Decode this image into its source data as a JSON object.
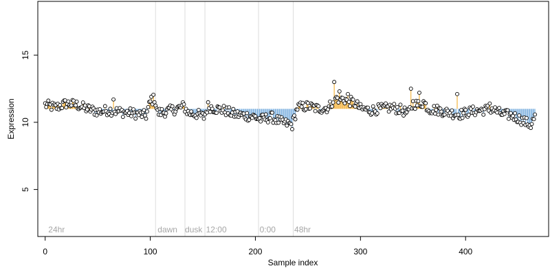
{
  "chart_data": {
    "type": "scatter",
    "title": "",
    "xlabel": "Sample index",
    "ylabel": "Expression",
    "xlim": [
      -7,
      479
    ],
    "ylim": [
      1.5,
      19
    ],
    "xticks": [
      0,
      100,
      200,
      300,
      400
    ],
    "yticks": [
      5,
      10,
      15
    ],
    "grid": false,
    "legend": "none",
    "baseline": 11.0,
    "colors": {
      "above": "#f2a51a",
      "below": "#6fa8dc",
      "point_fill": "#ffffff",
      "point_stroke": "#000000",
      "divider": "#dcdcdc",
      "phase_text": "#a6a6a6"
    },
    "dividers": [
      105,
      133,
      152,
      203,
      236
    ],
    "phase_labels": [
      {
        "x": 3,
        "text": "24hr"
      },
      {
        "x": 107,
        "text": "dawn"
      },
      {
        "x": 133,
        "text": "dusk"
      },
      {
        "x": 153,
        "text": "12:00"
      },
      {
        "x": 204,
        "text": "0:00"
      },
      {
        "x": 237,
        "text": "48hr"
      }
    ],
    "anchors": [
      [
        0,
        11.3
      ],
      [
        10,
        11.1
      ],
      [
        20,
        11.4
      ],
      [
        30,
        11.3
      ],
      [
        40,
        11.0
      ],
      [
        50,
        10.8
      ],
      [
        60,
        10.9
      ],
      [
        70,
        10.8
      ],
      [
        80,
        10.7
      ],
      [
        90,
        10.6
      ],
      [
        96,
        10.5
      ],
      [
        100,
        11.5
      ],
      [
        104,
        11.8
      ],
      [
        107,
        10.7
      ],
      [
        115,
        10.8
      ],
      [
        125,
        11.0
      ],
      [
        132,
        11.2
      ],
      [
        136,
        10.7
      ],
      [
        145,
        10.6
      ],
      [
        151,
        10.4
      ],
      [
        155,
        11.2
      ],
      [
        162,
        11.0
      ],
      [
        170,
        10.9
      ],
      [
        180,
        10.6
      ],
      [
        190,
        10.5
      ],
      [
        200,
        10.4
      ],
      [
        205,
        10.2
      ],
      [
        215,
        10.4
      ],
      [
        225,
        10.0
      ],
      [
        235,
        9.8
      ],
      [
        240,
        11.1
      ],
      [
        250,
        11.2
      ],
      [
        260,
        11.0
      ],
      [
        270,
        11.1
      ],
      [
        275,
        11.8
      ],
      [
        285,
        11.7
      ],
      [
        295,
        11.4
      ],
      [
        300,
        11.0
      ],
      [
        310,
        10.9
      ],
      [
        320,
        11.0
      ],
      [
        330,
        11.1
      ],
      [
        340,
        10.9
      ],
      [
        345,
        10.6
      ],
      [
        350,
        11.4
      ],
      [
        355,
        11.3
      ],
      [
        360,
        11.5
      ],
      [
        365,
        11.0
      ],
      [
        375,
        10.9
      ],
      [
        385,
        10.7
      ],
      [
        395,
        10.6
      ],
      [
        405,
        10.8
      ],
      [
        415,
        10.9
      ],
      [
        425,
        11.0
      ],
      [
        435,
        10.6
      ],
      [
        445,
        10.5
      ],
      [
        455,
        10.1
      ],
      [
        462,
        9.8
      ],
      [
        466,
        10.4
      ]
    ],
    "spikes": [
      {
        "x": 275,
        "y": 13.0
      },
      {
        "x": 280,
        "y": 12.3
      },
      {
        "x": 288,
        "y": 12.1
      },
      {
        "x": 348,
        "y": 12.5
      },
      {
        "x": 356,
        "y": 12.2
      },
      {
        "x": 392,
        "y": 12.1
      },
      {
        "x": 65,
        "y": 11.7
      },
      {
        "x": 101,
        "y": 11.9
      },
      {
        "x": 423,
        "y": 11.4
      }
    ],
    "n_points": 467
  }
}
